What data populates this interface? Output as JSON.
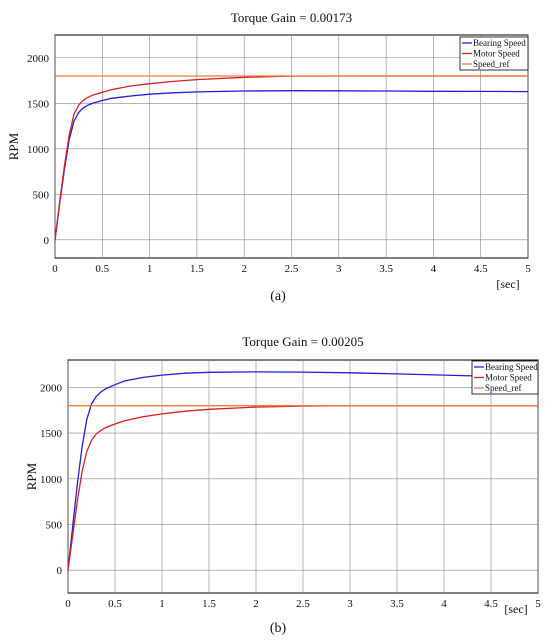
{
  "chart_data": [
    {
      "type": "line",
      "title": "Torque Gain = 0.00173",
      "caption": "(a)",
      "xlabel": "[sec]",
      "ylabel": "RPM",
      "xlim": [
        0,
        5
      ],
      "ylim": [
        -200,
        2250
      ],
      "xticks": [
        "0",
        "0.5",
        "1",
        "1.5",
        "2",
        "2.5",
        "3",
        "3.5",
        "4",
        "4.5",
        "5"
      ],
      "yticks": [
        "0",
        "500",
        "1000",
        "1500",
        "2000"
      ],
      "grid": true,
      "legend": "top-right",
      "series": [
        {
          "name": "Bearing Speed",
          "color": "#1f1fd6",
          "x": [
            0,
            0.05,
            0.1,
            0.15,
            0.2,
            0.25,
            0.3,
            0.35,
            0.4,
            0.5,
            0.6,
            0.8,
            1.0,
            1.25,
            1.5,
            2.0,
            2.5,
            3.0,
            3.5,
            4.0,
            4.5,
            5.0
          ],
          "y": [
            0,
            400,
            780,
            1100,
            1300,
            1400,
            1450,
            1480,
            1500,
            1530,
            1555,
            1580,
            1600,
            1615,
            1625,
            1635,
            1638,
            1637,
            1635,
            1632,
            1630,
            1628
          ]
        },
        {
          "name": "Motor Speed",
          "color": "#d62020",
          "x": [
            0,
            0.05,
            0.1,
            0.15,
            0.2,
            0.25,
            0.3,
            0.35,
            0.4,
            0.5,
            0.6,
            0.8,
            1.0,
            1.25,
            1.5,
            2.0,
            2.5,
            3.0,
            3.5,
            4.0,
            4.5,
            5.0
          ],
          "y": [
            0,
            420,
            820,
            1150,
            1380,
            1480,
            1535,
            1565,
            1590,
            1620,
            1650,
            1690,
            1715,
            1740,
            1760,
            1785,
            1798,
            1800,
            1800,
            1800,
            1800,
            1800
          ]
        },
        {
          "name": "Speed_ref",
          "color": "#f07a40",
          "x": [
            0,
            5
          ],
          "y": [
            1800,
            1800
          ]
        }
      ]
    },
    {
      "type": "line",
      "title": "Torque Gain = 0.00205",
      "caption": "(b)",
      "xlabel": "[sec]",
      "ylabel": "RPM",
      "xlim": [
        0,
        5
      ],
      "ylim": [
        -250,
        2300
      ],
      "xticks": [
        "0",
        "0.5",
        "1",
        "1.5",
        "2",
        "2.5",
        "3",
        "3.5",
        "4",
        "4.5",
        "5"
      ],
      "yticks": [
        "0",
        "500",
        "1000",
        "1500",
        "2000"
      ],
      "grid": true,
      "legend": "top-right",
      "series": [
        {
          "name": "Bearing Speed",
          "color": "#1f1fd6",
          "x": [
            0,
            0.05,
            0.1,
            0.15,
            0.2,
            0.25,
            0.3,
            0.35,
            0.4,
            0.5,
            0.6,
            0.8,
            1.0,
            1.25,
            1.5,
            2.0,
            2.5,
            3.0,
            3.5,
            4.0,
            4.5,
            5.0
          ],
          "y": [
            0,
            480,
            950,
            1350,
            1650,
            1820,
            1900,
            1950,
            1985,
            2030,
            2070,
            2110,
            2135,
            2155,
            2165,
            2170,
            2168,
            2160,
            2148,
            2135,
            2120,
            2110
          ]
        },
        {
          "name": "Motor Speed",
          "color": "#d62020",
          "x": [
            0,
            0.05,
            0.1,
            0.15,
            0.2,
            0.25,
            0.3,
            0.35,
            0.4,
            0.5,
            0.6,
            0.8,
            1.0,
            1.25,
            1.5,
            2.0,
            2.5,
            3.0,
            3.5,
            4.0,
            4.5,
            5.0
          ],
          "y": [
            0,
            380,
            760,
            1080,
            1300,
            1420,
            1490,
            1530,
            1560,
            1600,
            1635,
            1680,
            1710,
            1740,
            1760,
            1785,
            1796,
            1800,
            1800,
            1800,
            1800,
            1800
          ]
        },
        {
          "name": "Speed_ref",
          "color": "#f07a40",
          "x": [
            0,
            5
          ],
          "y": [
            1800,
            1800
          ]
        }
      ]
    }
  ]
}
